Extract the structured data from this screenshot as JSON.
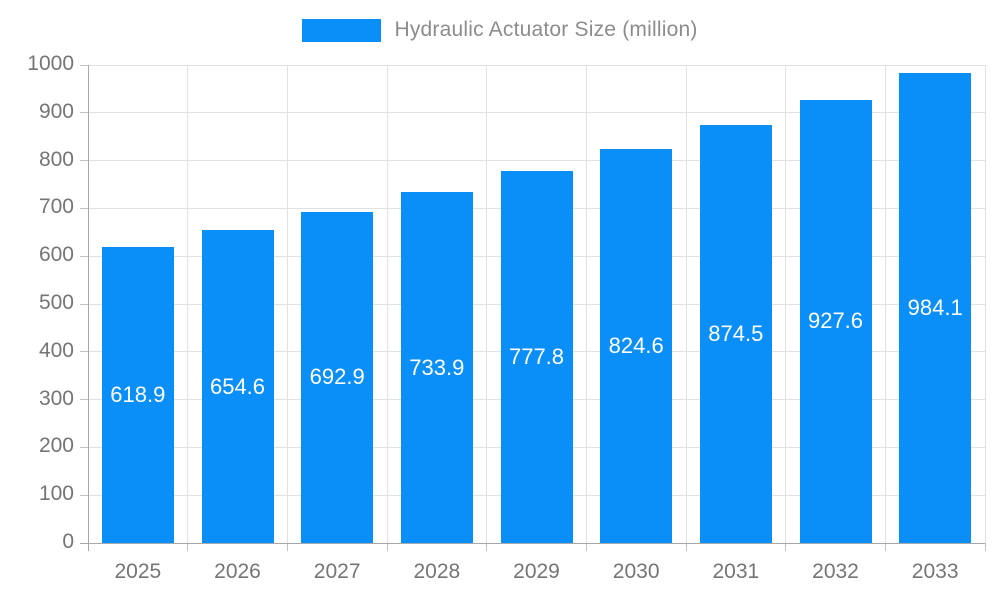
{
  "legend": {
    "label": "Hydraulic Actuator Size (million)"
  },
  "colors": {
    "bar": "#0a8ef8",
    "bar_value_text": "#ffffff",
    "legend_text": "#8c8c8c",
    "axis_text": "#757575",
    "grid": "#e2e2e2",
    "axis_line": "#a8a8a8",
    "tick": "#c2c2c2"
  },
  "chart_data": {
    "type": "bar",
    "title": "Hydraulic Actuator Size (million)",
    "categories": [
      "2025",
      "2026",
      "2027",
      "2028",
      "2029",
      "2030",
      "2031",
      "2032",
      "2033"
    ],
    "values": [
      618.9,
      654.6,
      692.9,
      733.9,
      777.8,
      824.6,
      874.5,
      927.6,
      984.1
    ],
    "series_name": "Hydraulic Actuator Size (million)",
    "xlabel": "",
    "ylabel": "",
    "ylim": [
      0,
      1000
    ],
    "ytick_interval": 100,
    "ytick_labels": [
      "0",
      "100",
      "200",
      "300",
      "400",
      "500",
      "600",
      "700",
      "800",
      "900",
      "1000"
    ],
    "grid": true,
    "legend_position": "top-center",
    "value_labels": "inside-center"
  }
}
